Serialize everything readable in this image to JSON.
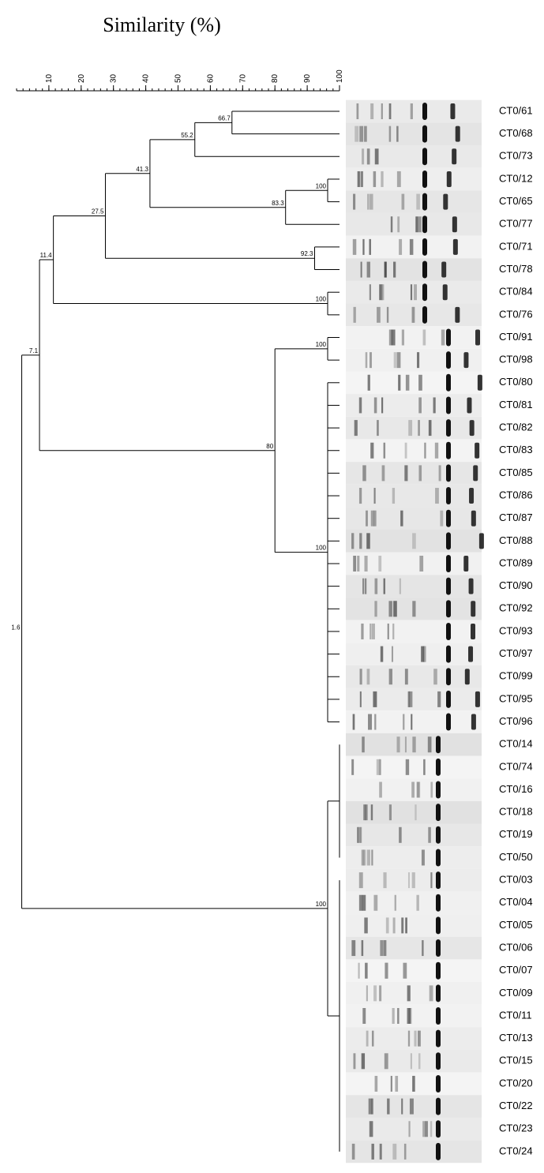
{
  "title": "Similarity (%)",
  "axis": {
    "ticks": [
      10,
      20,
      30,
      40,
      50,
      60,
      70,
      80,
      90,
      100
    ]
  },
  "nodes": [
    {
      "similarity": 66.7
    },
    {
      "similarity": 55.2
    },
    {
      "similarity": 100
    },
    {
      "similarity": 83.3
    },
    {
      "similarity": 41.3
    },
    {
      "similarity": 92.3
    },
    {
      "similarity": 27.5
    },
    {
      "similarity": 100
    },
    {
      "similarity": 11.4
    },
    {
      "similarity": 100
    },
    {
      "similarity": 100
    },
    {
      "similarity": 80
    },
    {
      "similarity": 7.1
    },
    {
      "similarity": 100
    },
    {
      "similarity": 100
    },
    {
      "similarity": 100
    },
    {
      "similarity": 1.6
    }
  ],
  "leaves": [
    "CT0/61",
    "CT0/68",
    "CT0/73",
    "CT0/12",
    "CT0/65",
    "CT0/77",
    "CT0/71",
    "CT0/78",
    "CT0/84",
    "CT0/76",
    "CT0/91",
    "CT0/98",
    "CT0/80",
    "CT0/81",
    "CT0/82",
    "CT0/83",
    "CT0/85",
    "CT0/86",
    "CT0/87",
    "CT0/88",
    "CT0/89",
    "CT0/90",
    "CT0/92",
    "CT0/93",
    "CT0/97",
    "CT0/99",
    "CT0/95",
    "CT0/96",
    "CT0/14",
    "CT0/74",
    "CT0/16",
    "CT0/18",
    "CT0/19",
    "CT0/50",
    "CT0/03",
    "CT0/04",
    "CT0/05",
    "CT0/06",
    "CT0/07",
    "CT0/09",
    "CT0/11",
    "CT0/13",
    "CT0/15",
    "CT0/20",
    "CT0/22",
    "CT0/23",
    "CT0/24"
  ]
}
